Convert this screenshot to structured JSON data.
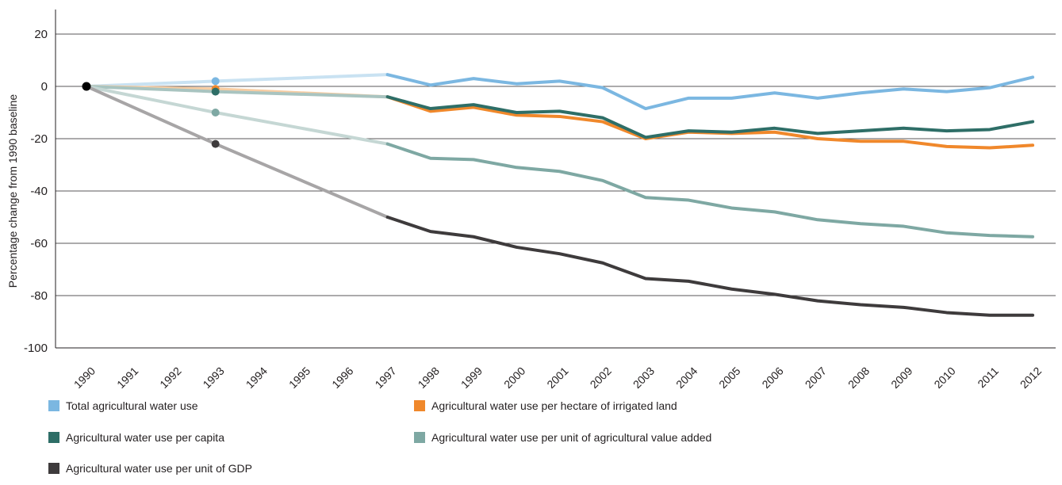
{
  "chart_data": {
    "type": "line",
    "title": "",
    "xlabel": "",
    "ylabel": "Percentage change from 1990 baseline",
    "ylim": [
      -100,
      30
    ],
    "yticks": [
      20,
      0,
      -20,
      -40,
      -60,
      -80,
      -100
    ],
    "grid": true,
    "legend_position": "bottom",
    "categories": [
      "1990",
      "1991",
      "1992",
      "1993",
      "1994",
      "1995",
      "1996",
      "1997",
      "1998",
      "1999",
      "2000",
      "2001",
      "2002",
      "2003",
      "2004",
      "2005",
      "2006",
      "2007",
      "2008",
      "2009",
      "2010",
      "2011",
      "2012"
    ],
    "series": [
      {
        "name": "Total agricultural water use",
        "color": "#7bb7e1",
        "light_color": "#c9e2f2",
        "values": [
          0,
          null,
          null,
          2,
          null,
          null,
          null,
          4.5,
          0.5,
          3,
          1,
          2,
          -0.5,
          -8.5,
          -4.5,
          -4.5,
          -2.5,
          -4.5,
          -2.5,
          -1,
          -2,
          -0.5,
          3.5
        ]
      },
      {
        "name": "Agricultural water use per hectare of irrigated land",
        "color": "#f0882b",
        "light_color": "#f7cda3",
        "values": [
          0,
          null,
          null,
          -1,
          null,
          null,
          null,
          -4,
          -9.5,
          -8,
          -11,
          -11.5,
          -13.5,
          -20,
          -17.5,
          -18,
          -17.5,
          -20,
          -21,
          -21,
          -23,
          -23.5,
          -22.5
        ]
      },
      {
        "name": "Agricultural water use per capita",
        "color": "#2e6e67",
        "light_color": "#a9c4c0",
        "values": [
          0,
          null,
          null,
          -2,
          null,
          null,
          null,
          -4,
          -8.5,
          -7,
          -10,
          -9.5,
          -12,
          -19.5,
          -17,
          -17.5,
          -16,
          -18,
          -17,
          -16,
          -17,
          -16.5,
          -13.5
        ]
      },
      {
        "name": "Agricultural water use per unit of agricultural value added",
        "color": "#7ea8a3",
        "light_color": "#c5d7d4",
        "values": [
          0,
          null,
          null,
          -10,
          null,
          null,
          null,
          -22,
          -27.5,
          -28,
          -31,
          -32.5,
          -36,
          -42.5,
          -43.5,
          -46.5,
          -48,
          -51,
          -52.5,
          -53.5,
          -56,
          -57,
          -57.5
        ]
      },
      {
        "name": "Agricultural water use per unit of GDP",
        "color": "#3e3b3c",
        "light_color": "#a7a5a6",
        "values": [
          0,
          null,
          null,
          -22,
          null,
          null,
          null,
          -50,
          -55.5,
          -57.5,
          -61.5,
          -64,
          -67.5,
          -73.5,
          -74.5,
          -77.5,
          -79.5,
          -82,
          -83.5,
          -84.5,
          -86.5,
          -87.5,
          -87.5
        ]
      }
    ]
  },
  "legend": {
    "items": [
      {
        "label": "Total agricultural water use",
        "color": "#7bb7e1"
      },
      {
        "label": "Agricultural water use per hectare of irrigated land",
        "color": "#f0882b"
      },
      {
        "label": "Agricultural water use per capita",
        "color": "#2e6e67"
      },
      {
        "label": "Agricultural water use per unit of agricultural value added",
        "color": "#7ea8a3"
      },
      {
        "label": "Agricultural water use per unit of GDP",
        "color": "#3e3b3c"
      }
    ]
  }
}
